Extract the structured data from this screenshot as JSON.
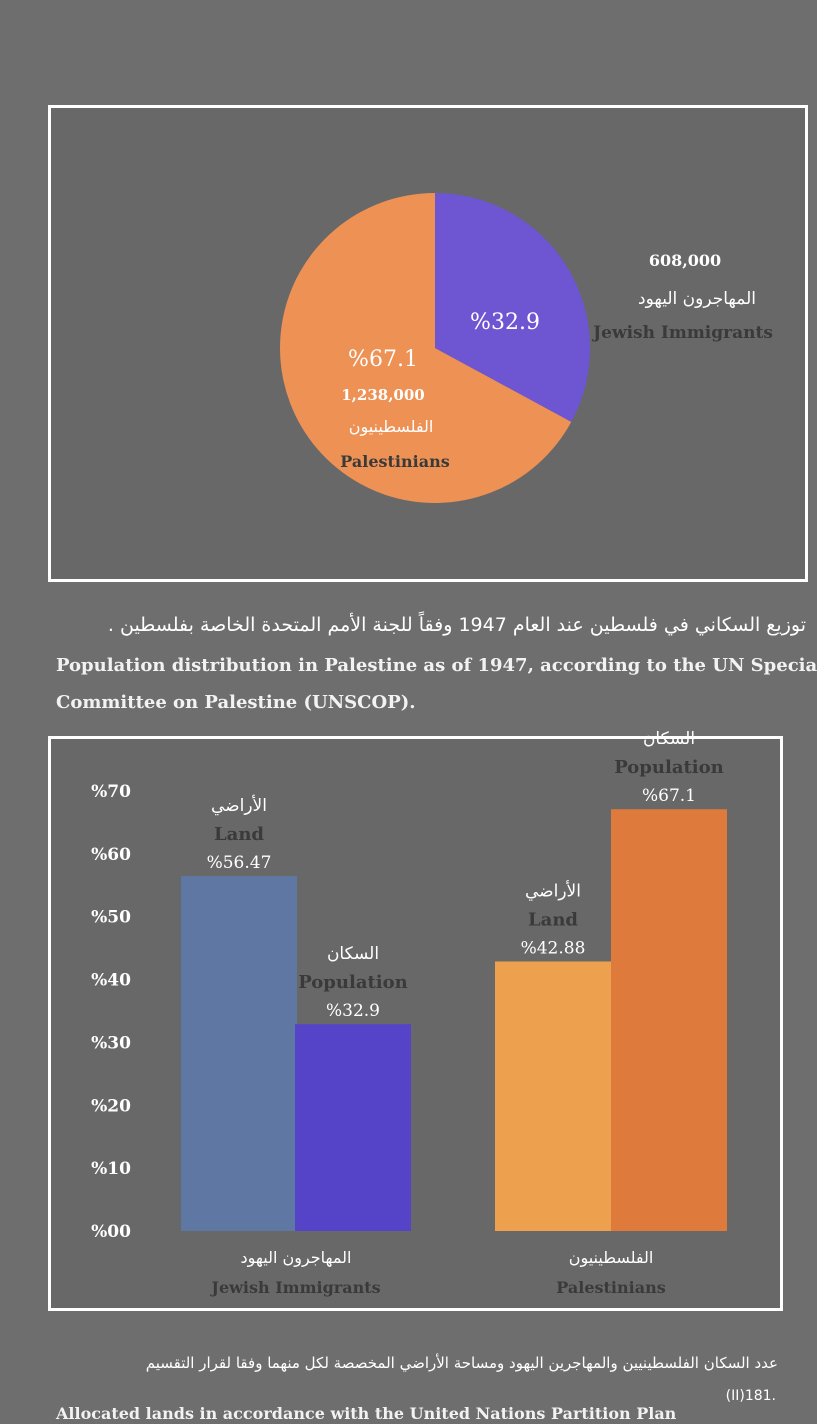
{
  "colors": {
    "background": "#6e6e6e",
    "panel": "#686868",
    "palestinians_pie": "#ee9155",
    "jewish_pie": "#6e56d2",
    "jewish_land": "#5f78a3",
    "jewish_population": "#5544c8",
    "palestinian_land": "#eda04e",
    "palestinian_population": "#dd7a3c",
    "label_dark": "#3a3a3a"
  },
  "pie": {
    "palestinians": {
      "pct": "%67.1",
      "count": "1,238,000",
      "label_ar": "الفلسطينيون",
      "label_en": "Palestinians"
    },
    "jewish": {
      "pct": "%32.9",
      "count": "608,000",
      "label_ar": "المهاجرون اليهود",
      "label_en": "Jewish Immigrants"
    }
  },
  "caption1": {
    "ar": "توزيع السكاني في فلسطين عند العام 1947 وفقاً للجنة الأمم المتحدة الخاصة بفلسطين .",
    "en_line1": "Population distribution in Palestine as of 1947, according to the UN Specia",
    "en_line2": "Committee on Palestine (UNSCOP)."
  },
  "bar": {
    "y_ticks": [
      "%70",
      "%60",
      "%50",
      "%40",
      "%30",
      "%20",
      "%10",
      "%00"
    ],
    "groups": [
      {
        "name_ar": "المهاجرون اليهود",
        "name_en": "Jewish Immigrants",
        "land": {
          "label_ar": "الأراضي",
          "label_en": "Land",
          "value_label": "%56.47"
        },
        "population": {
          "label_ar": "السكان",
          "label_en": "Population",
          "value_label": "%32.9"
        }
      },
      {
        "name_ar": "الفلسطينيون",
        "name_en": "Palestinians",
        "land": {
          "label_ar": "الأراضي",
          "label_en": "Land",
          "value_label": "%42.88"
        },
        "population": {
          "label_ar": "السكان",
          "label_en": "Population",
          "value_label": "%67.1"
        }
      }
    ]
  },
  "caption2": {
    "ar": "عدد السكان الفلسطينيين والمهاجرين اليهود ومساحة الأراضي المخصصة لكل منهما وفقا لقرار التقسيم",
    "ar_line2": "(II)181.",
    "en": "Allocated lands in accordance with the United Nations Partition Plan"
  },
  "chart_data": [
    {
      "type": "pie",
      "labels": [
        "Palestinians",
        "Jewish Immigrants"
      ],
      "values": [
        67.1,
        32.9
      ],
      "counts": [
        1238000,
        608000
      ]
    },
    {
      "type": "bar",
      "categories": [
        "Jewish Immigrants",
        "Palestinians"
      ],
      "series": [
        {
          "name": "Land",
          "values": [
            56.47,
            42.88
          ]
        },
        {
          "name": "Population",
          "values": [
            32.9,
            67.1
          ]
        }
      ],
      "ylim": [
        0,
        70
      ]
    }
  ]
}
